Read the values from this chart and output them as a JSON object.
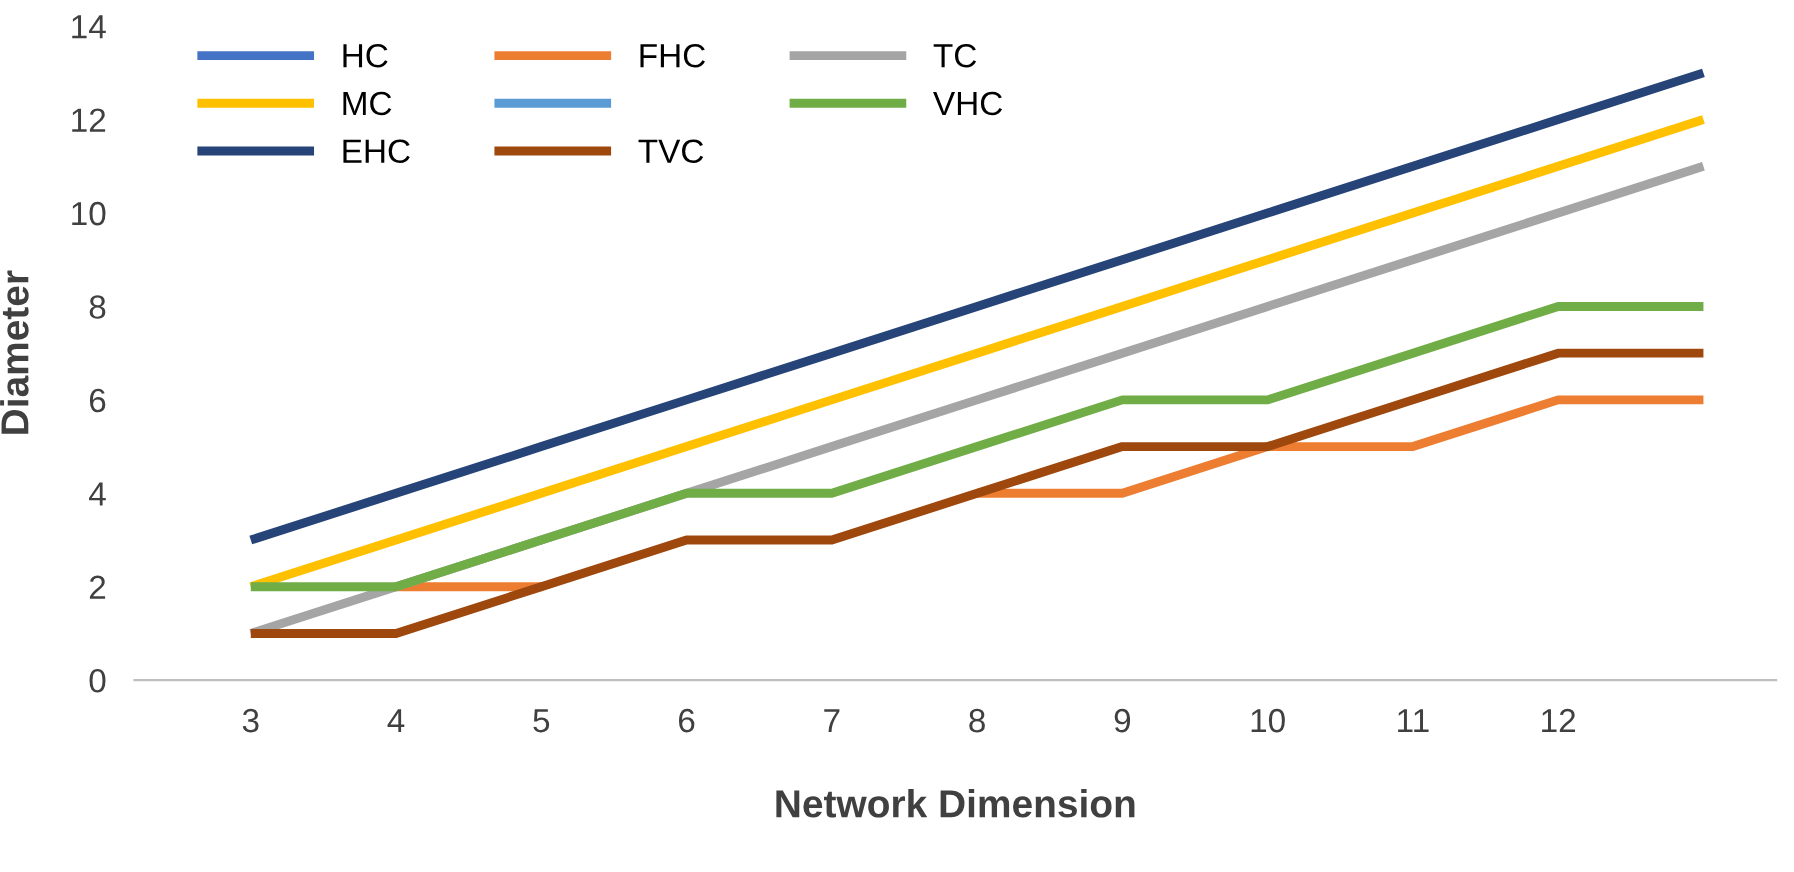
{
  "chart_data": {
    "type": "line",
    "xlabel": "Network Dimension",
    "ylabel": "Diameter",
    "categories": [
      "3",
      "4",
      "5",
      "6",
      "7",
      "8",
      "9",
      "10",
      "11",
      "12",
      null
    ],
    "ylim": [
      0,
      14
    ],
    "yticks": [
      0,
      2,
      4,
      6,
      8,
      10,
      12,
      14
    ],
    "grid": false,
    "legend": "top left",
    "marker": "none",
    "line_style": "solid",
    "series": [
      {
        "name": "HC",
        "color": "#4472c4",
        "values": [
          null,
          null,
          null,
          null,
          null,
          null,
          null,
          null,
          null,
          null,
          null
        ]
      },
      {
        "name": "FHC",
        "color": "#ed7d31",
        "values": [
          null,
          2,
          2,
          null,
          null,
          4,
          4,
          5,
          5,
          6,
          6
        ]
      },
      {
        "name": "TC",
        "color": "#a5a5a5",
        "values": [
          1,
          2,
          3,
          4,
          5,
          6,
          7,
          8,
          9,
          10,
          11
        ]
      },
      {
        "name": "MC",
        "color": "#ffc000",
        "values": [
          2,
          3,
          4,
          5,
          6,
          7,
          8,
          9,
          10,
          11,
          12
        ]
      },
      {
        "color": "#5b9bd5",
        "values": [
          null,
          null,
          null,
          null,
          null,
          null,
          null,
          null,
          null,
          null,
          null
        ]
      },
      {
        "name": "VHC",
        "color": "#70ad47",
        "values": [
          2,
          2,
          3,
          4,
          4,
          5,
          6,
          6,
          7,
          8,
          8
        ]
      },
      {
        "name": "EHC",
        "color": "#264478",
        "values": [
          3,
          4,
          5,
          6,
          7,
          8,
          9,
          10,
          11,
          12,
          13
        ]
      },
      {
        "name": "TVC",
        "color": "#9e480e",
        "values": [
          1,
          1,
          2,
          3,
          3,
          4,
          5,
          5,
          6,
          7,
          7
        ]
      }
    ]
  }
}
